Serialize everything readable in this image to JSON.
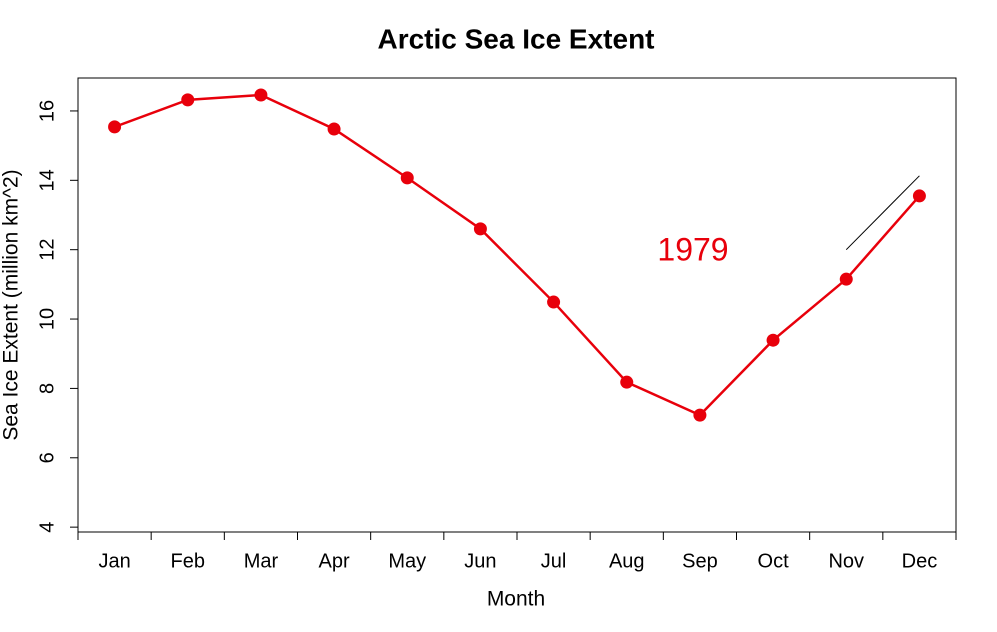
{
  "chart_data": {
    "type": "line",
    "title": "Arctic Sea Ice Extent",
    "xlabel": "Month",
    "ylabel": "Sea Ice Extent (million km^2)",
    "categories": [
      "Jan",
      "Feb",
      "Mar",
      "Apr",
      "May",
      "Jun",
      "Jul",
      "Aug",
      "Sep",
      "Oct",
      "Nov",
      "Dec"
    ],
    "series": [
      {
        "color": "#e8000b",
        "markers": true,
        "values": [
          15.54,
          16.32,
          16.46,
          15.48,
          14.07,
          12.6,
          10.49,
          8.18,
          7.23,
          9.39,
          11.15,
          13.55
        ]
      },
      {
        "color": "#000000",
        "markers": false,
        "values": [
          null,
          null,
          null,
          null,
          null,
          null,
          null,
          null,
          null,
          null,
          12.0,
          14.13
        ]
      }
    ],
    "annotation": {
      "text": "1979",
      "color": "#e8000b"
    },
    "ylim": [
      3.86,
      16.95
    ],
    "yticks": [
      4,
      6,
      8,
      10,
      12,
      14,
      16
    ],
    "grid": false
  }
}
